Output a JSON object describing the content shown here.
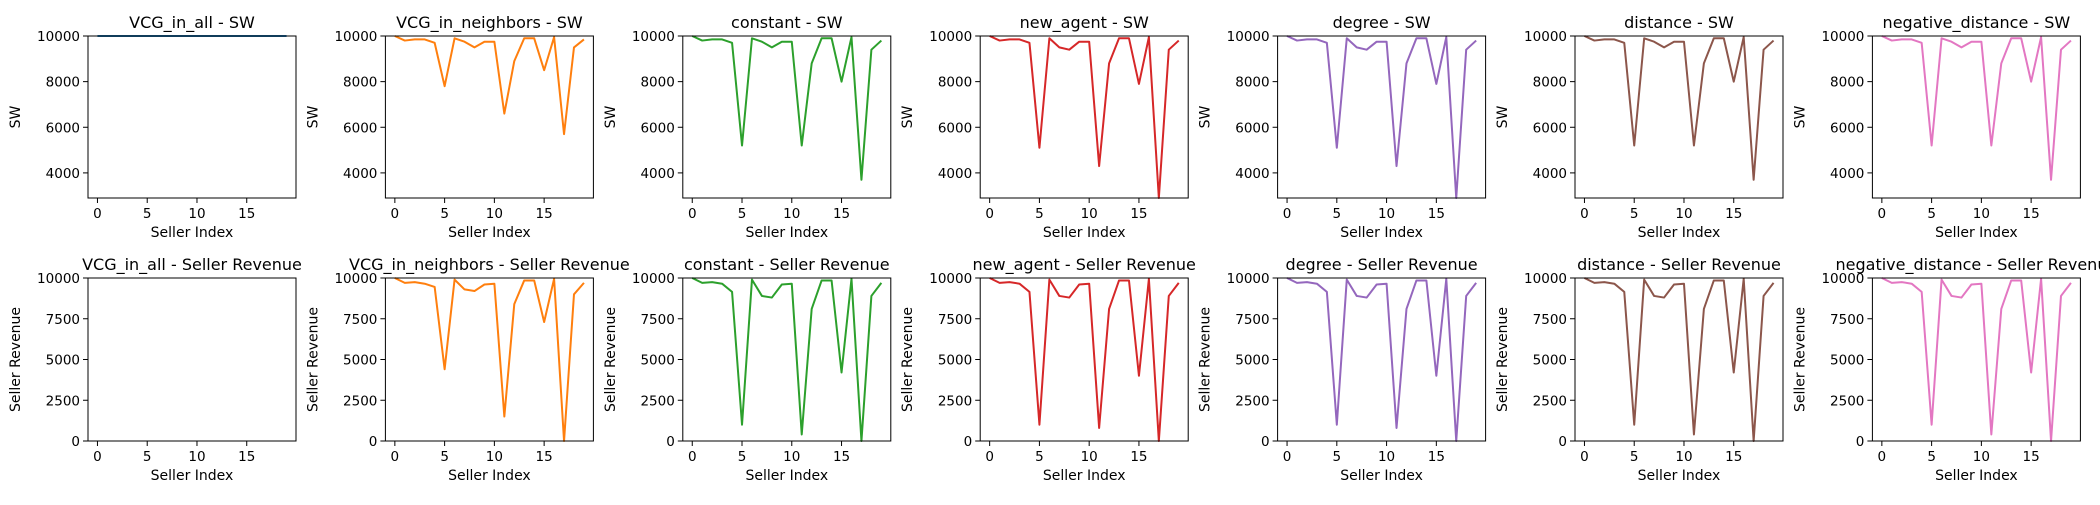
{
  "chart_data": [
    {
      "type": "line",
      "title": "VCG_in_all - SW",
      "xlabel": "Seller Index",
      "ylabel": "SW",
      "ylim": [
        2900,
        10000
      ],
      "yticks": [
        4000,
        6000,
        8000,
        10000
      ],
      "color": "#1f77b4",
      "x": [
        0,
        1,
        2,
        3,
        4,
        5,
        6,
        7,
        8,
        9,
        10,
        11,
        12,
        13,
        14,
        15,
        16,
        17,
        18,
        19
      ],
      "values": [
        10000,
        10000,
        10000,
        10000,
        10000,
        10000,
        10000,
        10000,
        10000,
        10000,
        10000,
        10000,
        10000,
        10000,
        10000,
        10000,
        10000,
        10000,
        10000,
        10000
      ]
    },
    {
      "type": "line",
      "title": "VCG_in_neighbors - SW",
      "xlabel": "Seller Index",
      "ylabel": "SW",
      "ylim": [
        2900,
        10000
      ],
      "yticks": [
        4000,
        6000,
        8000,
        10000
      ],
      "color": "#ff7f0e",
      "x": [
        0,
        1,
        2,
        3,
        4,
        5,
        6,
        7,
        8,
        9,
        10,
        11,
        12,
        13,
        14,
        15,
        16,
        17,
        18,
        19
      ],
      "values": [
        10000,
        9800,
        9850,
        9850,
        9700,
        7800,
        9900,
        9750,
        9500,
        9750,
        9750,
        6600,
        8900,
        9900,
        9900,
        8500,
        9950,
        5700,
        9500,
        9850
      ]
    },
    {
      "type": "line",
      "title": "constant - SW",
      "xlabel": "Seller Index",
      "ylabel": "SW",
      "ylim": [
        2900,
        10000
      ],
      "yticks": [
        4000,
        6000,
        8000,
        10000
      ],
      "color": "#2ca02c",
      "x": [
        0,
        1,
        2,
        3,
        4,
        5,
        6,
        7,
        8,
        9,
        10,
        11,
        12,
        13,
        14,
        15,
        16,
        17,
        18,
        19
      ],
      "values": [
        10000,
        9800,
        9850,
        9850,
        9700,
        5200,
        9900,
        9750,
        9500,
        9750,
        9750,
        5200,
        8800,
        9900,
        9900,
        8000,
        9950,
        3700,
        9400,
        9800
      ]
    },
    {
      "type": "line",
      "title": "new_agent - SW",
      "xlabel": "Seller Index",
      "ylabel": "SW",
      "ylim": [
        2900,
        10000
      ],
      "yticks": [
        4000,
        6000,
        8000,
        10000
      ],
      "color": "#d62728",
      "x": [
        0,
        1,
        2,
        3,
        4,
        5,
        6,
        7,
        8,
        9,
        10,
        11,
        12,
        13,
        14,
        15,
        16,
        17,
        18,
        19
      ],
      "values": [
        10000,
        9800,
        9850,
        9850,
        9700,
        5100,
        9900,
        9500,
        9400,
        9750,
        9750,
        4300,
        8800,
        9900,
        9900,
        7900,
        9950,
        2900,
        9400,
        9800
      ]
    },
    {
      "type": "line",
      "title": "degree - SW",
      "xlabel": "Seller Index",
      "ylabel": "SW",
      "ylim": [
        2900,
        10000
      ],
      "yticks": [
        4000,
        6000,
        8000,
        10000
      ],
      "color": "#9467bd",
      "x": [
        0,
        1,
        2,
        3,
        4,
        5,
        6,
        7,
        8,
        9,
        10,
        11,
        12,
        13,
        14,
        15,
        16,
        17,
        18,
        19
      ],
      "values": [
        10000,
        9800,
        9850,
        9850,
        9700,
        5100,
        9900,
        9500,
        9400,
        9750,
        9750,
        4300,
        8800,
        9900,
        9900,
        7900,
        9950,
        2900,
        9400,
        9800
      ]
    },
    {
      "type": "line",
      "title": "distance - SW",
      "xlabel": "Seller Index",
      "ylabel": "SW",
      "ylim": [
        2900,
        10000
      ],
      "yticks": [
        4000,
        6000,
        8000,
        10000
      ],
      "color": "#8c564b",
      "x": [
        0,
        1,
        2,
        3,
        4,
        5,
        6,
        7,
        8,
        9,
        10,
        11,
        12,
        13,
        14,
        15,
        16,
        17,
        18,
        19
      ],
      "values": [
        10000,
        9800,
        9850,
        9850,
        9700,
        5200,
        9900,
        9750,
        9500,
        9750,
        9750,
        5200,
        8800,
        9900,
        9900,
        8000,
        9950,
        3700,
        9400,
        9800
      ]
    },
    {
      "type": "line",
      "title": "negative_distance - SW",
      "xlabel": "Seller Index",
      "ylabel": "SW",
      "ylim": [
        2900,
        10000
      ],
      "yticks": [
        4000,
        6000,
        8000,
        10000
      ],
      "color": "#e377c2",
      "x": [
        0,
        1,
        2,
        3,
        4,
        5,
        6,
        7,
        8,
        9,
        10,
        11,
        12,
        13,
        14,
        15,
        16,
        17,
        18,
        19
      ],
      "values": [
        10000,
        9800,
        9850,
        9850,
        9700,
        5200,
        9900,
        9750,
        9500,
        9750,
        9750,
        5200,
        8800,
        9900,
        9900,
        8000,
        9950,
        3700,
        9400,
        9800
      ]
    },
    {
      "type": "line",
      "title": "VCG_in_all - Seller Revenue",
      "xlabel": "Seller Index",
      "ylabel": "Seller Revenue",
      "ylim": [
        0,
        10000
      ],
      "yticks": [
        0,
        2500,
        5000,
        7500,
        10000
      ],
      "color": "#1f77b4",
      "x": [],
      "values": []
    },
    {
      "type": "line",
      "title": "VCG_in_neighbors - Seller Revenue",
      "xlabel": "Seller Index",
      "ylabel": "Seller Revenue",
      "ylim": [
        0,
        10000
      ],
      "yticks": [
        0,
        2500,
        5000,
        7500,
        10000
      ],
      "color": "#ff7f0e",
      "x": [
        0,
        1,
        2,
        3,
        4,
        5,
        6,
        7,
        8,
        9,
        10,
        11,
        12,
        13,
        14,
        15,
        16,
        17,
        18,
        19
      ],
      "values": [
        10000,
        9700,
        9750,
        9650,
        9450,
        4400,
        9900,
        9300,
        9200,
        9600,
        9650,
        1500,
        8400,
        9850,
        9850,
        7300,
        9950,
        0,
        9000,
        9700
      ]
    },
    {
      "type": "line",
      "title": "constant - Seller Revenue",
      "xlabel": "Seller Index",
      "ylabel": "Seller Revenue",
      "ylim": [
        0,
        10000
      ],
      "yticks": [
        0,
        2500,
        5000,
        7500,
        10000
      ],
      "color": "#2ca02c",
      "x": [
        0,
        1,
        2,
        3,
        4,
        5,
        6,
        7,
        8,
        9,
        10,
        11,
        12,
        13,
        14,
        15,
        16,
        17,
        18,
        19
      ],
      "values": [
        10000,
        9700,
        9750,
        9650,
        9150,
        1000,
        9900,
        8900,
        8800,
        9600,
        9650,
        400,
        8100,
        9850,
        9850,
        4200,
        9950,
        0,
        8900,
        9700
      ]
    },
    {
      "type": "line",
      "title": "new_agent - Seller Revenue",
      "xlabel": "Seller Index",
      "ylabel": "Seller Revenue",
      "ylim": [
        0,
        10000
      ],
      "yticks": [
        0,
        2500,
        5000,
        7500,
        10000
      ],
      "color": "#d62728",
      "x": [
        0,
        1,
        2,
        3,
        4,
        5,
        6,
        7,
        8,
        9,
        10,
        11,
        12,
        13,
        14,
        15,
        16,
        17,
        18,
        19
      ],
      "values": [
        10000,
        9700,
        9750,
        9650,
        9150,
        1000,
        9900,
        8900,
        8800,
        9600,
        9650,
        800,
        8100,
        9850,
        9850,
        4000,
        9950,
        0,
        8900,
        9700
      ]
    },
    {
      "type": "line",
      "title": "degree - Seller Revenue",
      "xlabel": "Seller Index",
      "ylabel": "Seller Revenue",
      "ylim": [
        0,
        10000
      ],
      "yticks": [
        0,
        2500,
        5000,
        7500,
        10000
      ],
      "color": "#9467bd",
      "x": [
        0,
        1,
        2,
        3,
        4,
        5,
        6,
        7,
        8,
        9,
        10,
        11,
        12,
        13,
        14,
        15,
        16,
        17,
        18,
        19
      ],
      "values": [
        10000,
        9700,
        9750,
        9650,
        9150,
        1000,
        9900,
        8900,
        8800,
        9600,
        9650,
        800,
        8100,
        9850,
        9850,
        4000,
        9950,
        0,
        8900,
        9700
      ]
    },
    {
      "type": "line",
      "title": "distance - Seller Revenue",
      "xlabel": "Seller Index",
      "ylabel": "Seller Revenue",
      "ylim": [
        0,
        10000
      ],
      "yticks": [
        0,
        2500,
        5000,
        7500,
        10000
      ],
      "color": "#8c564b",
      "x": [
        0,
        1,
        2,
        3,
        4,
        5,
        6,
        7,
        8,
        9,
        10,
        11,
        12,
        13,
        14,
        15,
        16,
        17,
        18,
        19
      ],
      "values": [
        10000,
        9700,
        9750,
        9650,
        9150,
        1000,
        9900,
        8900,
        8800,
        9600,
        9650,
        400,
        8100,
        9850,
        9850,
        4200,
        9950,
        0,
        8900,
        9700
      ]
    },
    {
      "type": "line",
      "title": "negative_distance - Seller Revenue",
      "xlabel": "Seller Index",
      "ylabel": "Seller Revenue",
      "ylim": [
        0,
        10000
      ],
      "yticks": [
        0,
        2500,
        5000,
        7500,
        10000
      ],
      "color": "#e377c2",
      "x": [
        0,
        1,
        2,
        3,
        4,
        5,
        6,
        7,
        8,
        9,
        10,
        11,
        12,
        13,
        14,
        15,
        16,
        17,
        18,
        19
      ],
      "values": [
        10000,
        9700,
        9750,
        9650,
        9150,
        1000,
        9900,
        8900,
        8800,
        9600,
        9650,
        400,
        8100,
        9850,
        9850,
        4200,
        9950,
        0,
        8900,
        9700
      ]
    }
  ],
  "xticks": [
    0,
    5,
    10,
    15
  ],
  "xlim": [
    -0.95,
    19.95
  ]
}
